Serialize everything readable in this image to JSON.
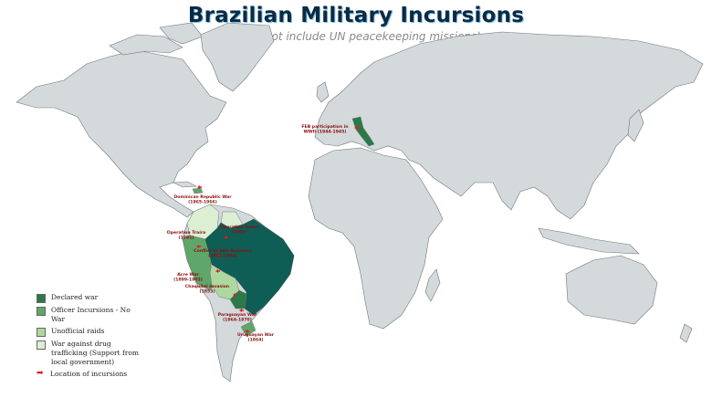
{
  "title": "Brazilian Military Incursions",
  "subtitle": "(does not include UN peacekeeping missions)",
  "colors": {
    "ocean": "#ffffff",
    "land": "#d4d9db",
    "declared_war": "#0e5e56",
    "officer_incursions": "#5ea66a",
    "unofficial_raids": "#aed8a0",
    "drug_trafficking": "#dcefd3",
    "incursion_marker": "#e31b1b",
    "label_text": "#8b0f0f"
  },
  "legend": {
    "items": [
      {
        "label": "Declared war",
        "color": "#2a7a48"
      },
      {
        "label": "Officer Incursions - No War",
        "color": "#5ea66a"
      },
      {
        "label": "Unofficial raids",
        "color": "#aed8a0"
      },
      {
        "label": "War against drug trafficking (Support from local government)",
        "color": "#dcefd3"
      },
      {
        "label": "Location of incursions",
        "icon": "red-arrow-icon"
      }
    ]
  },
  "labels": {
    "feb": [
      "FEB participation in",
      "WWII (1944-1945)"
    ],
    "dominican": [
      "Dominican Republic War",
      "(1965-1966)"
    ],
    "traira": [
      "Operation Traíra",
      "(1991)"
    ],
    "golus": [
      "Operation Golus",
      "(2002)"
    ],
    "solimoes": [
      "Conflict of Alto Solimões",
      "(1902-1904)"
    ],
    "acre": [
      "Acre War",
      "(1899-1903)"
    ],
    "chaquitel": [
      "Chaquitel Invasion",
      "(1853)"
    ],
    "paraguayan": [
      "Paraguayan War",
      "(1864-1870)"
    ],
    "uruguayan": [
      "Uruguayan War",
      "(1864)"
    ]
  }
}
